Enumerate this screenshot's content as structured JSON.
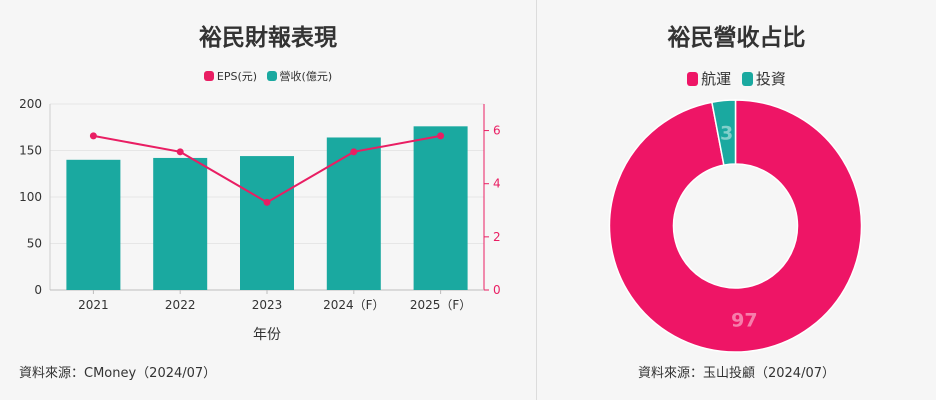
{
  "left": {
    "title": "裕民財報表現",
    "legend": [
      {
        "label": "EPS(元)",
        "color": "#e91e63"
      },
      {
        "label": "營收(億元)",
        "color": "#1aa9a0"
      }
    ],
    "source": "資料來源：CMoney（2024/07）"
  },
  "right": {
    "title": "裕民營收占比",
    "legend": [
      {
        "label": "航運",
        "color": "#ee1566"
      },
      {
        "label": "投資",
        "color": "#1aa9a0"
      }
    ],
    "source": "資料來源：玉山投顧（2024/07）"
  },
  "chart_data": [
    {
      "type": "bar+line",
      "title": "裕民財報表現",
      "xlabel": "年份",
      "categories": [
        "2021",
        "2022",
        "2023",
        "2024（F）",
        "2025（F）"
      ],
      "series": [
        {
          "name": "營收(億元)",
          "type": "bar",
          "axis": "left",
          "color": "#1aa9a0",
          "values": [
            140,
            142,
            144,
            164,
            176
          ]
        },
        {
          "name": "EPS(元)",
          "type": "line",
          "axis": "right",
          "color": "#e91e63",
          "values": [
            5.8,
            5.2,
            3.3,
            5.2,
            5.8
          ]
        }
      ],
      "y_left": {
        "range": [
          0,
          200
        ],
        "ticks": [
          0,
          50,
          100,
          150,
          200
        ]
      },
      "y_right": {
        "range": [
          0,
          7
        ],
        "ticks": [
          0,
          2,
          4,
          6
        ],
        "color": "#e91e63"
      },
      "legend_position": "top-center",
      "grid": true
    },
    {
      "type": "pie",
      "subtype": "donut",
      "title": "裕民營收占比",
      "slices": [
        {
          "label": "航運",
          "value": 97,
          "color": "#ee1566"
        },
        {
          "label": "投資",
          "value": 3,
          "color": "#1aa9a0"
        }
      ],
      "legend_position": "top-center"
    }
  ]
}
